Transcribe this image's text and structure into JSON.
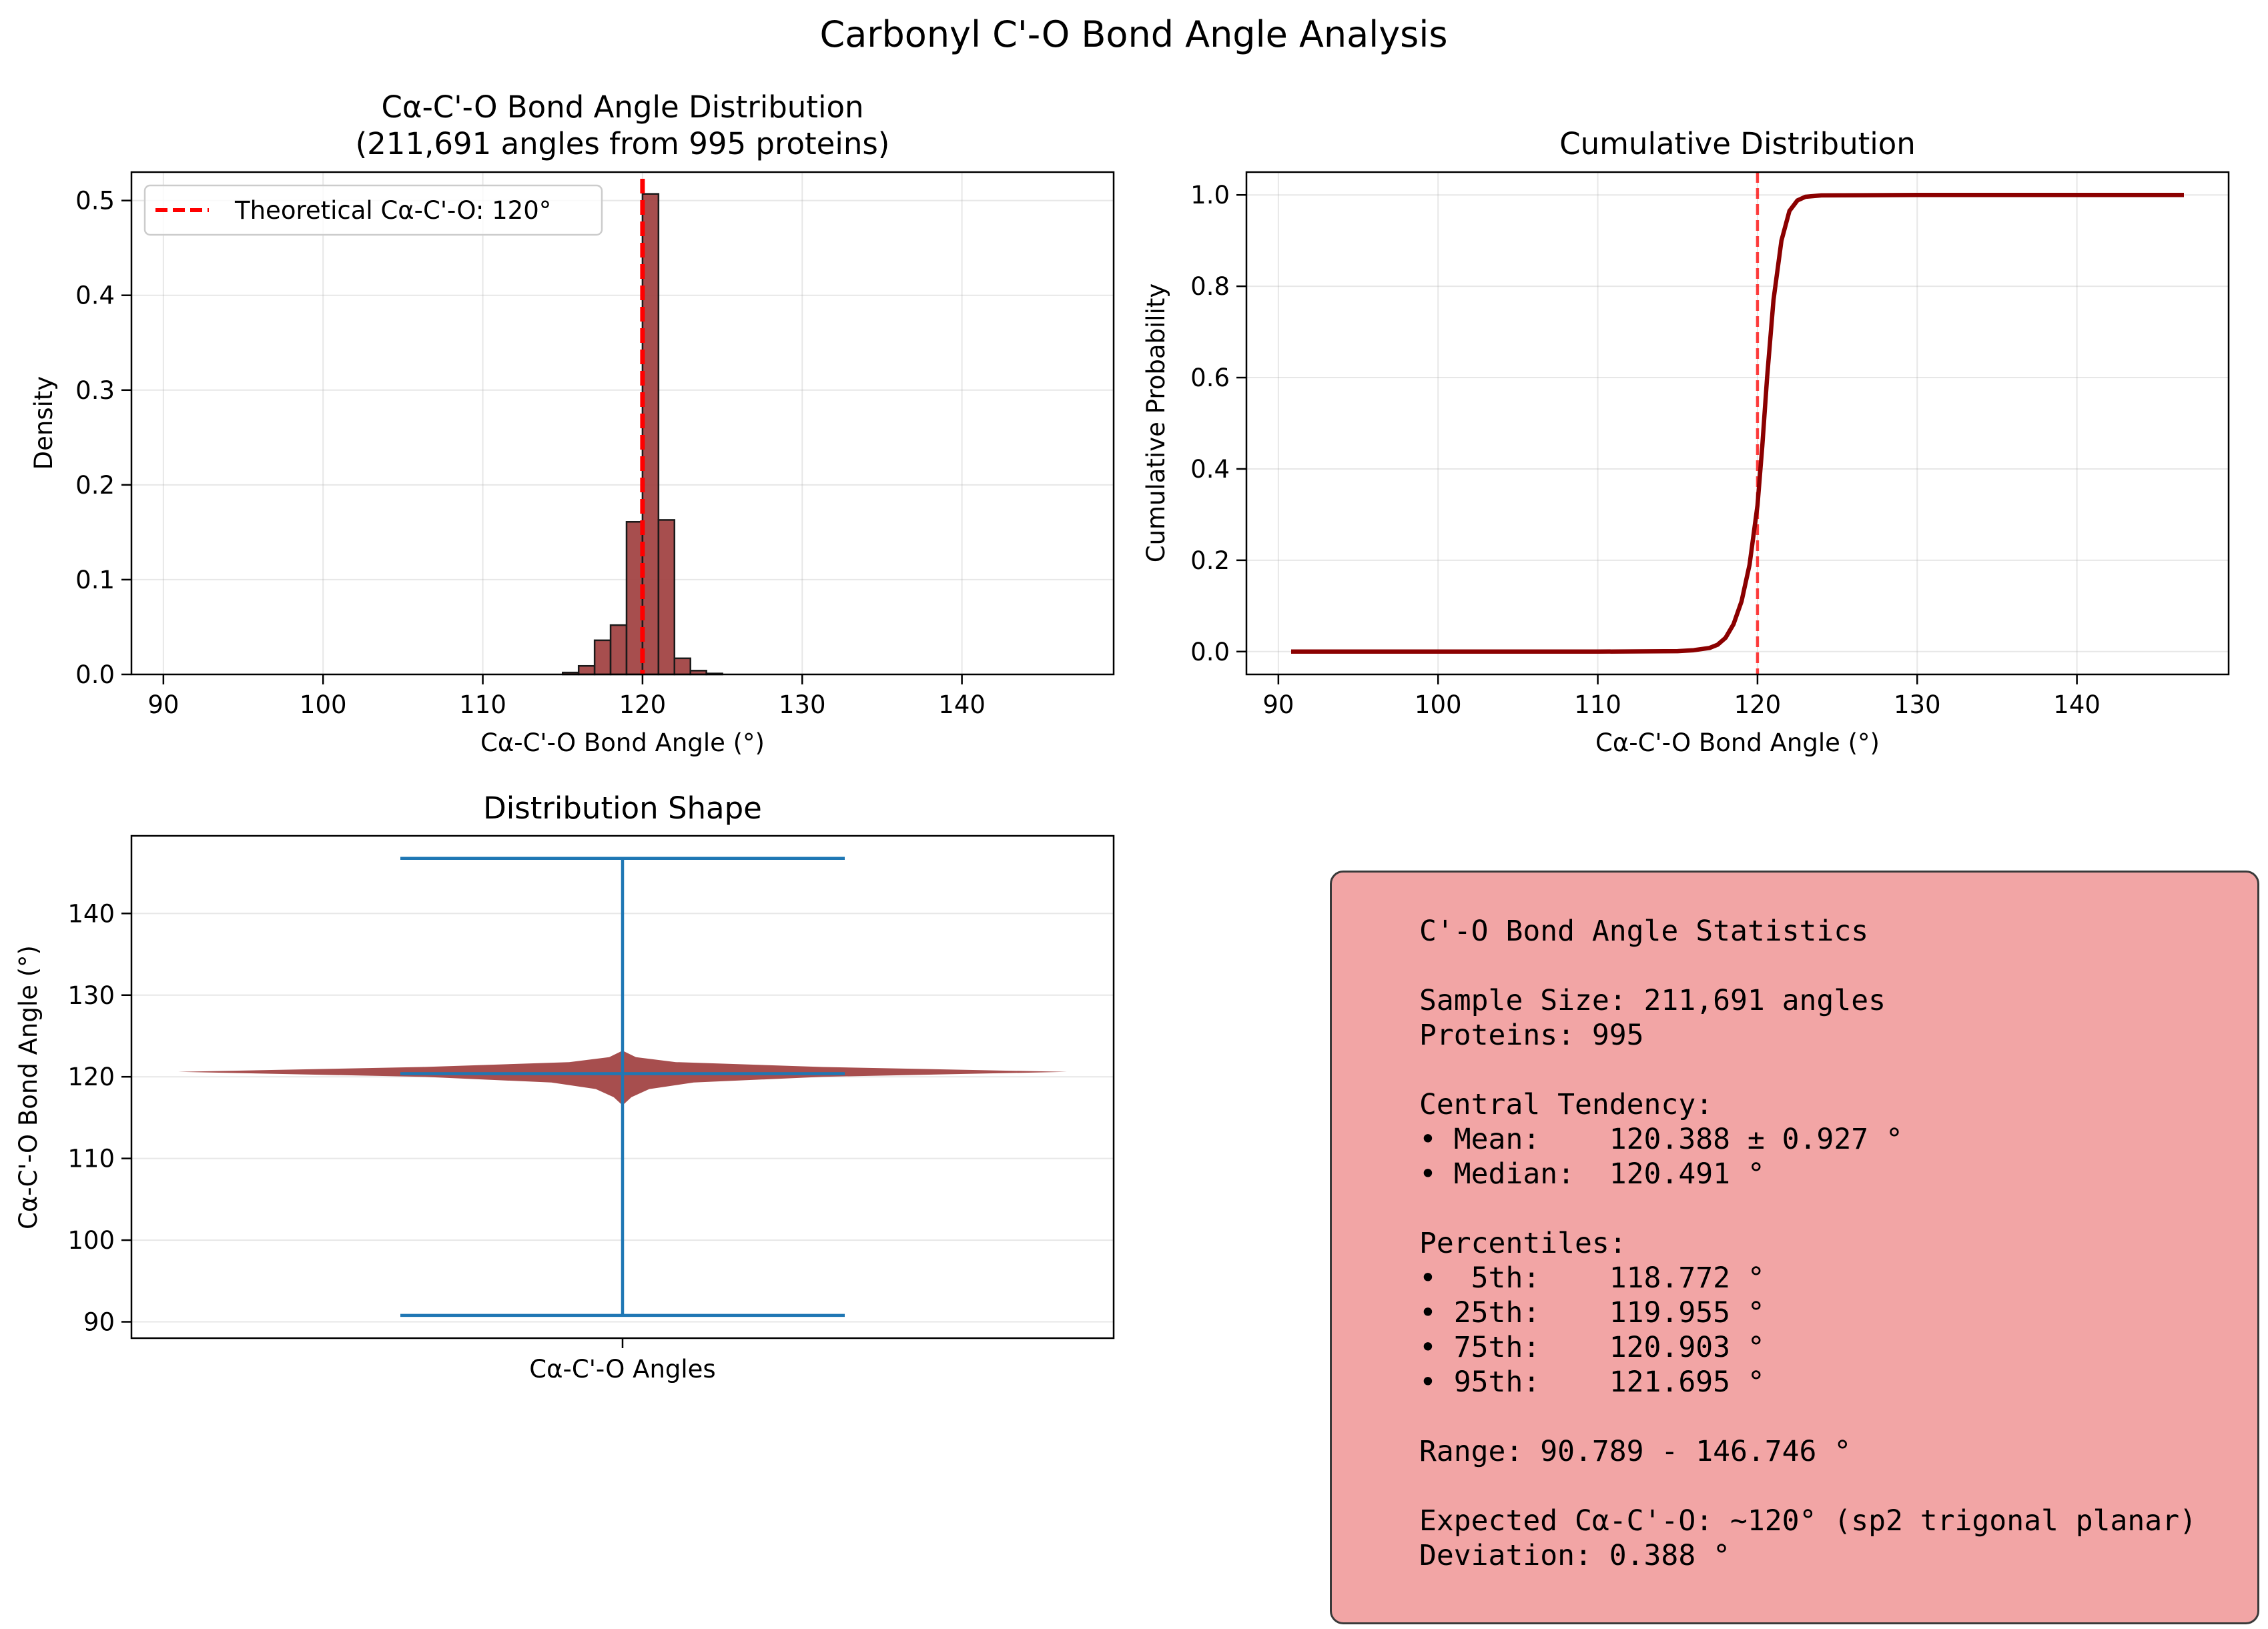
{
  "figure": {
    "title": "Carbonyl C'-O Bond Angle Analysis"
  },
  "colors": {
    "bar": "#a24444",
    "barEdge": "#1a1a1a",
    "theoretical": "#ff0000",
    "cdf": "#8b0000",
    "violin": "#a24444",
    "violinLines": "#1f77b4",
    "statsBox": "#f2a5a5"
  },
  "chart_data": [
    {
      "id": "histogram",
      "type": "bar",
      "title_line1": "Cα-C'-O Bond Angle Distribution",
      "title_line2": "(211,691 angles from 995 proteins)",
      "xlabel": "Cα-C'-O Bond Angle (°)",
      "ylabel": "Density",
      "xlim": [
        88.0,
        149.5
      ],
      "ylim": [
        0,
        0.53
      ],
      "xticks": [
        90,
        100,
        110,
        120,
        130,
        140
      ],
      "yticks": [
        0.0,
        0.1,
        0.2,
        0.3,
        0.4,
        0.5
      ],
      "grid": true,
      "bin_width": 1.0,
      "bins": [
        {
          "x0": 115,
          "value": 0.002
        },
        {
          "x0": 116,
          "value": 0.009
        },
        {
          "x0": 117,
          "value": 0.036
        },
        {
          "x0": 118,
          "value": 0.052
        },
        {
          "x0": 119,
          "value": 0.161
        },
        {
          "x0": 120,
          "value": 0.507
        },
        {
          "x0": 121,
          "value": 0.163
        },
        {
          "x0": 122,
          "value": 0.017
        },
        {
          "x0": 123,
          "value": 0.004
        },
        {
          "x0": 124,
          "value": 0.001
        }
      ],
      "reference_line": {
        "x": 120,
        "label": "Theoretical Cα-C'-O: 120°"
      },
      "legend_position": "upper-left"
    },
    {
      "id": "cumulative",
      "type": "line",
      "title": "Cumulative Distribution",
      "xlabel": "Cα-C'-O Bond Angle (°)",
      "ylabel": "Cumulative Probability",
      "xlim": [
        88.0,
        149.5
      ],
      "ylim": [
        -0.05,
        1.05
      ],
      "xticks": [
        90,
        100,
        110,
        120,
        130,
        140
      ],
      "yticks": [
        0.0,
        0.2,
        0.4,
        0.6,
        0.8,
        1.0
      ],
      "grid": true,
      "reference_line": {
        "x": 120
      },
      "series": [
        {
          "x": [
            90.8,
            110,
            115,
            116,
            117,
            117.5,
            118,
            118.5,
            119,
            119.5,
            120,
            120.3,
            120.6,
            121,
            121.5,
            122,
            122.5,
            123,
            124,
            130,
            146.7
          ],
          "y": [
            0.0,
            0.0,
            0.001,
            0.003,
            0.008,
            0.015,
            0.03,
            0.06,
            0.11,
            0.19,
            0.32,
            0.45,
            0.6,
            0.77,
            0.9,
            0.965,
            0.988,
            0.996,
            0.999,
            1.0,
            1.0
          ]
        }
      ]
    },
    {
      "id": "violin",
      "type": "violin",
      "title": "Distribution Shape",
      "xlabel": "Cα-C'-O Angles",
      "ylabel": "Cα-C'-O Bond Angle (°)",
      "ylim": [
        88.0,
        149.5
      ],
      "yticks": [
        90,
        100,
        110,
        120,
        130,
        140
      ],
      "grid": true,
      "min": 90.789,
      "max": 146.746,
      "mean": 120.388,
      "density_profile": [
        {
          "y": 116.5,
          "w": 0.0
        },
        {
          "y": 117.5,
          "w": 0.02
        },
        {
          "y": 118.5,
          "w": 0.06
        },
        {
          "y": 119.3,
          "w": 0.16
        },
        {
          "y": 120.0,
          "w": 0.45
        },
        {
          "y": 120.6,
          "w": 1.0
        },
        {
          "y": 121.2,
          "w": 0.45
        },
        {
          "y": 121.8,
          "w": 0.12
        },
        {
          "y": 122.4,
          "w": 0.03
        },
        {
          "y": 123.2,
          "w": 0.0
        }
      ]
    }
  ],
  "stats": {
    "title": "C'-O Bond Angle Statistics",
    "lines": [
      "Sample Size: 211,691 angles",
      "Proteins: 995",
      "",
      "Central Tendency:",
      "• Mean:    120.388 ± 0.927 °",
      "• Median:  120.491 °",
      "",
      "Percentiles:",
      "•  5th:    118.772 °",
      "• 25th:    119.955 °",
      "• 75th:    120.903 °",
      "• 95th:    121.695 °",
      "",
      "Range: 90.789 - 146.746 °",
      "",
      "Expected Cα-C'-O: ~120° (sp2 trigonal planar)",
      "Deviation: 0.388 °"
    ]
  }
}
